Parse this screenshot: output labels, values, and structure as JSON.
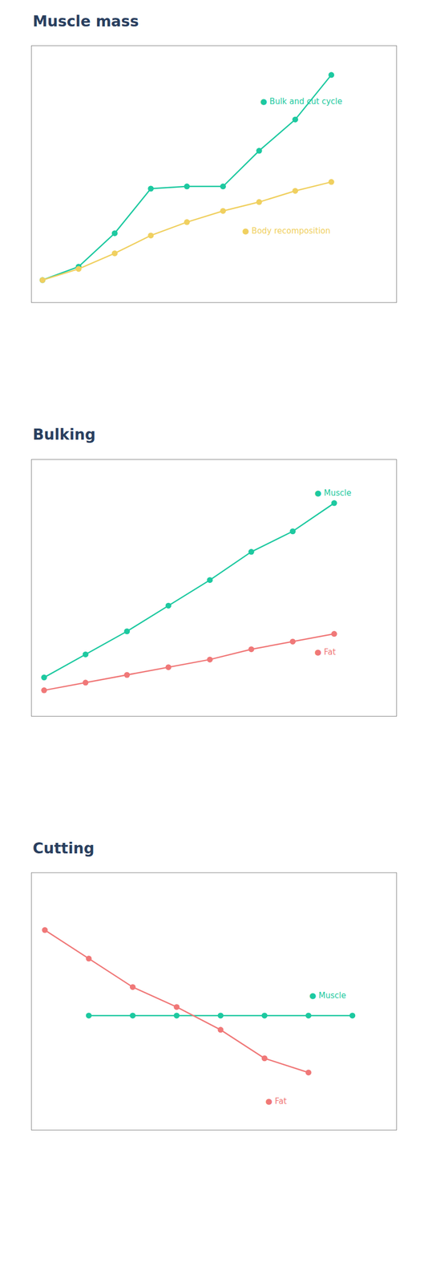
{
  "chart_data": [
    {
      "type": "line",
      "title": "Muscle mass",
      "series": [
        {
          "color": "#1dc9a0",
          "marker": "circle",
          "x": [
            0,
            1,
            2,
            3,
            4,
            5,
            6,
            7,
            8
          ],
          "values": [
            3.0,
            3.6,
            5.1,
            7.1,
            7.2,
            7.2,
            8.8,
            10.2,
            12.2
          ]
        },
        {
          "color": "#f0d060",
          "marker": "circle",
          "x": [
            0,
            1,
            2,
            3,
            4,
            5,
            6,
            7,
            8
          ],
          "values": [
            3.0,
            3.5,
            4.2,
            5.0,
            5.6,
            6.1,
            6.5,
            7.0,
            7.4
          ]
        }
      ],
      "annotations": [
        {
          "text": "● Bulk and cut cycle",
          "x": 6.0,
          "y": 11.0,
          "color": "#1dc9a0"
        },
        {
          "text": "● Body recomposition",
          "x": 5.5,
          "y": 5.2,
          "color": "#f0d060"
        }
      ],
      "xlim": [
        -0.3,
        9.8
      ],
      "ylim": [
        2.0,
        13.5
      ],
      "grid": false,
      "tick_labels": false
    },
    {
      "type": "line",
      "title": "Bulking",
      "series": [
        {
          "color": "#1dc9a0",
          "marker": "circle",
          "x": [
            0,
            1,
            2,
            3,
            4,
            5,
            6,
            7
          ],
          "values": [
            2.0,
            2.9,
            3.8,
            4.8,
            5.8,
            6.9,
            7.7,
            8.8
          ]
        },
        {
          "color": "#f07878",
          "marker": "circle",
          "x": [
            0,
            1,
            2,
            3,
            4,
            5,
            6,
            7
          ],
          "values": [
            1.5,
            1.8,
            2.1,
            2.4,
            2.7,
            3.1,
            3.4,
            3.7
          ]
        }
      ],
      "annotations": [
        {
          "text": "● Muscle",
          "x": 6.5,
          "y": 9.2,
          "color": "#1dc9a0"
        },
        {
          "text": "● Fat",
          "x": 6.5,
          "y": 3.0,
          "color": "#f07878"
        }
      ],
      "xlim": [
        -0.3,
        8.5
      ],
      "ylim": [
        0.5,
        10.5
      ],
      "grid": false,
      "tick_labels": false
    },
    {
      "type": "line",
      "title": "Cutting",
      "series": [
        {
          "color": "#1dc9a0",
          "marker": "circle",
          "x": [
            1,
            2,
            3,
            4,
            5,
            6,
            7
          ],
          "values": [
            5.5,
            5.5,
            5.5,
            5.5,
            5.5,
            5.5,
            5.5
          ]
        },
        {
          "color": "#f07878",
          "marker": "circle",
          "x": [
            0,
            1,
            2,
            3,
            4,
            5,
            6
          ],
          "values": [
            8.5,
            7.5,
            6.5,
            5.8,
            5.0,
            4.0,
            3.5
          ]
        }
      ],
      "annotations": [
        {
          "text": "● Muscle",
          "x": 6.0,
          "y": 6.2,
          "color": "#1dc9a0"
        },
        {
          "text": "● Fat",
          "x": 5.0,
          "y": 2.5,
          "color": "#f07878"
        }
      ],
      "xlim": [
        -0.3,
        8.0
      ],
      "ylim": [
        1.5,
        10.5
      ],
      "grid": false,
      "tick_labels": false
    }
  ]
}
